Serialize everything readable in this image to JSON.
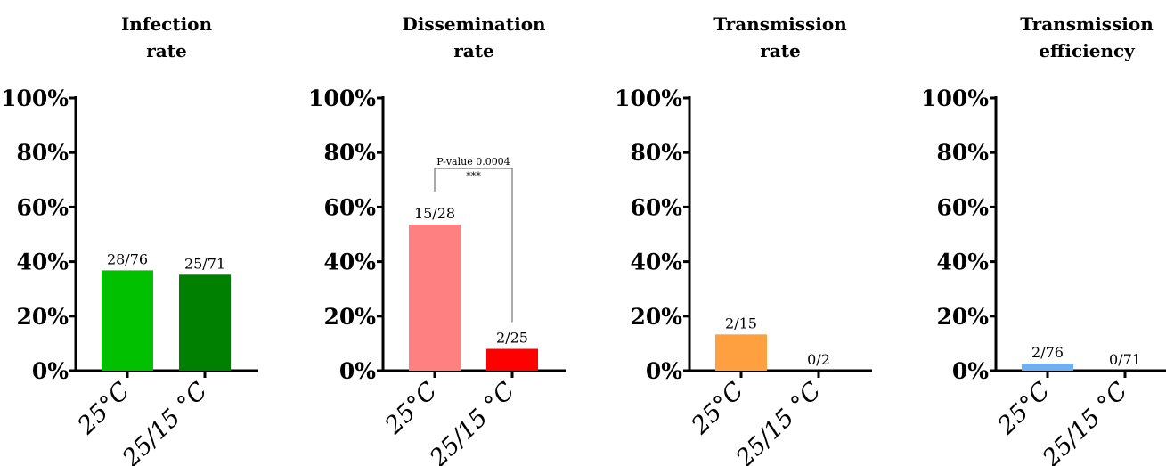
{
  "chart_data": [
    {
      "type": "bar",
      "title": [
        "Infection",
        "rate"
      ],
      "categories": [
        "25°C",
        "25/15 °C"
      ],
      "values": [
        36.8,
        35.2
      ],
      "data_labels": [
        "28/76",
        "25/71"
      ],
      "colors": [
        "#00c000",
        "#008000"
      ],
      "ylim": [
        0,
        100
      ],
      "yticks": [
        "0%",
        "20%",
        "40%",
        "60%",
        "80%",
        "100%"
      ]
    },
    {
      "type": "bar",
      "title": [
        "Dissemination",
        "rate"
      ],
      "categories": [
        "25°C",
        "25/15 °C"
      ],
      "values": [
        53.6,
        8.0
      ],
      "data_labels": [
        "15/28",
        "2/25"
      ],
      "colors": [
        "#ff8080",
        "#ff0000"
      ],
      "ylim": [
        0,
        100
      ],
      "yticks": [
        "0%",
        "20%",
        "40%",
        "60%",
        "80%",
        "100%"
      ],
      "annotation": {
        "text": "P-value 0.0004",
        "stars": "***"
      }
    },
    {
      "type": "bar",
      "title": [
        "Transmission",
        "rate"
      ],
      "categories": [
        "25°C",
        "25/15 °C"
      ],
      "values": [
        13.3,
        0
      ],
      "data_labels": [
        "2/15",
        "0/2"
      ],
      "colors": [
        "#ffa040",
        "#ffa040"
      ],
      "ylim": [
        0,
        100
      ],
      "yticks": [
        "0%",
        "20%",
        "40%",
        "60%",
        "80%",
        "100%"
      ]
    },
    {
      "type": "bar",
      "title": [
        "Transmission",
        "efficiency"
      ],
      "categories": [
        "25°C",
        "25/15 °C"
      ],
      "values": [
        2.6,
        0
      ],
      "data_labels": [
        "2/76",
        "0/71"
      ],
      "colors": [
        "#70b0f0",
        "#70b0f0"
      ],
      "ylim": [
        0,
        100
      ],
      "yticks": [
        "0%",
        "20%",
        "40%",
        "60%",
        "80%",
        "100%"
      ]
    }
  ]
}
